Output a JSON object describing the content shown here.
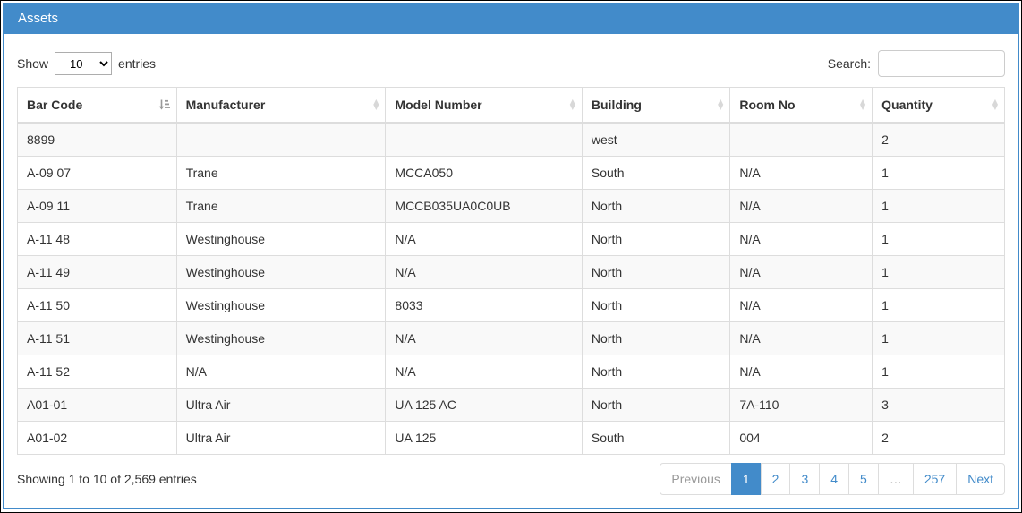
{
  "panel": {
    "title": "Assets"
  },
  "controls": {
    "show_label": "Show",
    "page_length": "10",
    "entries_label": "entries",
    "search_label": "Search:",
    "search_value": ""
  },
  "table": {
    "columns": [
      {
        "label": "Bar Code",
        "sort": "asc"
      },
      {
        "label": "Manufacturer",
        "sort": "none"
      },
      {
        "label": "Model Number",
        "sort": "none"
      },
      {
        "label": "Building",
        "sort": "none"
      },
      {
        "label": "Room No",
        "sort": "none"
      },
      {
        "label": "Quantity",
        "sort": "none"
      }
    ],
    "rows": [
      [
        "8899",
        "",
        "",
        "west",
        "",
        "2"
      ],
      [
        "A-09 07",
        "Trane",
        "MCCA050",
        "South",
        "N/A",
        "1"
      ],
      [
        "A-09 11",
        "Trane",
        "MCCB035UA0C0UB",
        "North",
        "N/A",
        "1"
      ],
      [
        "A-11 48",
        "Westinghouse",
        "N/A",
        "North",
        "N/A",
        "1"
      ],
      [
        "A-11 49",
        "Westinghouse",
        "N/A",
        "North",
        "N/A",
        "1"
      ],
      [
        "A-11 50",
        "Westinghouse",
        "8033",
        "North",
        "N/A",
        "1"
      ],
      [
        "A-11 51",
        "Westinghouse",
        "N/A",
        "North",
        "N/A",
        "1"
      ],
      [
        "A-11 52",
        "N/A",
        "N/A",
        "North",
        "N/A",
        "1"
      ],
      [
        "A01-01",
        "Ultra Air",
        "UA 125 AC",
        "North",
        "7A-110",
        "3"
      ],
      [
        "A01-02",
        "Ultra Air",
        "UA 125",
        "South",
        "004",
        "2"
      ]
    ]
  },
  "footer": {
    "info": "Showing 1 to 10 of 2,569 entries",
    "pagination": [
      {
        "label": "Previous",
        "state": "disabled"
      },
      {
        "label": "1",
        "state": "active"
      },
      {
        "label": "2",
        "state": "link"
      },
      {
        "label": "3",
        "state": "link"
      },
      {
        "label": "4",
        "state": "link"
      },
      {
        "label": "5",
        "state": "link"
      },
      {
        "label": "…",
        "state": "disabled"
      },
      {
        "label": "257",
        "state": "link"
      },
      {
        "label": "Next",
        "state": "link"
      }
    ]
  },
  "colors": {
    "accent": "#428bca",
    "table_border": "#dddddd",
    "row_stripe": "#f9f9f9",
    "text": "#333333",
    "disabled_text": "#999999"
  }
}
